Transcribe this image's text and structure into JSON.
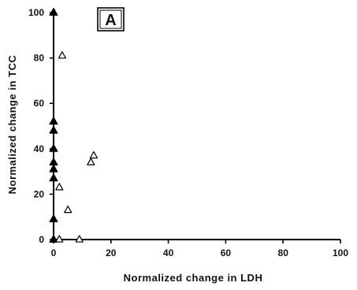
{
  "chart_data": {
    "type": "scatter",
    "panel_label": "A",
    "xlabel": "Normalized change in LDH",
    "ylabel": "Normalized change in TCC",
    "xlim": [
      0,
      100
    ],
    "ylim": [
      0,
      100
    ],
    "x_ticks": [
      0,
      20,
      40,
      60,
      80,
      100
    ],
    "y_ticks": [
      0,
      20,
      40,
      60,
      80,
      100
    ],
    "grid": false,
    "series": [
      {
        "marker": "filled-triangle",
        "color": "#000000",
        "x": [
          0,
          0,
          0,
          0,
          0,
          0,
          0,
          0,
          0
        ],
        "y": [
          100,
          52,
          48,
          40,
          34,
          31,
          27,
          9,
          0
        ]
      },
      {
        "marker": "open-triangle",
        "color": "#000000",
        "x": [
          3,
          14,
          13,
          2,
          5,
          2,
          9
        ],
        "y": [
          81,
          37,
          34,
          23,
          13,
          0,
          0
        ]
      }
    ]
  }
}
